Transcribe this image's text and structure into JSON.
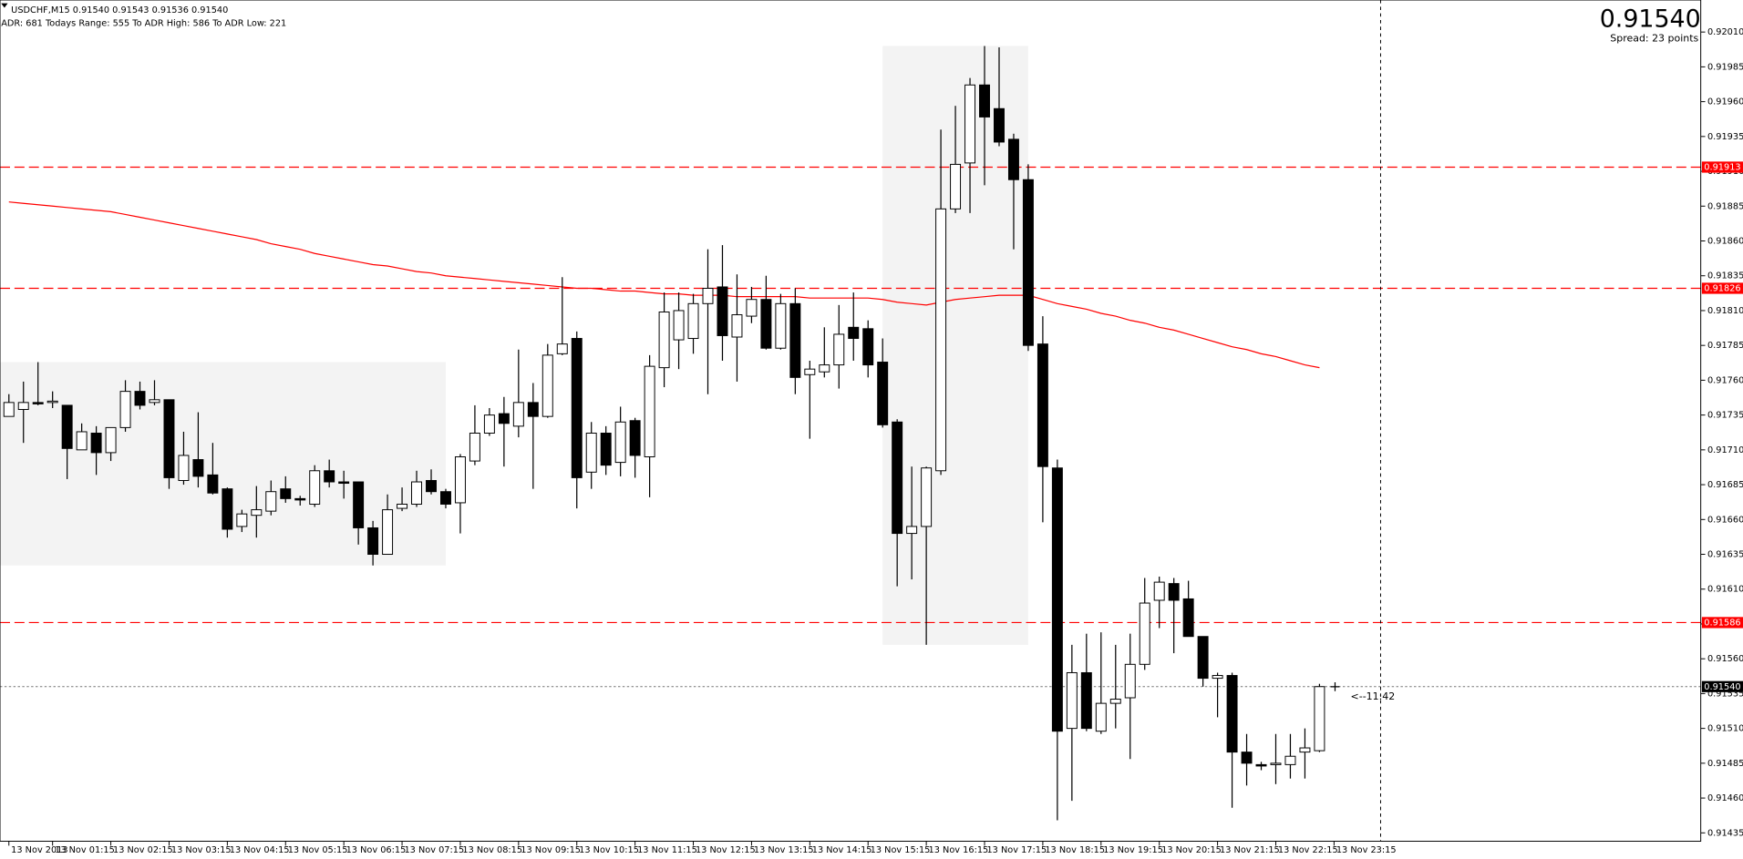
{
  "chart_data": {
    "type": "candlestick",
    "header": "USDCHF,M15  0.91540 0.91543 0.91536 0.91540",
    "info": "ADR: 681  Todays Range: 555  To ADR High: 586  To ADR Low: 221",
    "price": "0.91540",
    "spread": "Spread: 23 points",
    "countdown": "<--11:42",
    "categories": [
      "13 Nov 2013",
      null,
      null,
      "13 Nov 01:15",
      null,
      null,
      null,
      "13 Nov 02:15",
      null,
      null,
      null,
      "13 Nov 03:15",
      null,
      null,
      null,
      "13 Nov 04:15",
      null,
      null,
      null,
      "13 Nov 05:15",
      null,
      null,
      null,
      "13 Nov 06:15",
      null,
      null,
      null,
      "13 Nov 07:15",
      null,
      null,
      null,
      "13 Nov 08:15",
      null,
      null,
      null,
      "13 Nov 09:15",
      null,
      null,
      null,
      "13 Nov 10:15",
      null,
      null,
      null,
      "13 Nov 11:15",
      null,
      null,
      null,
      "13 Nov 12:15",
      null,
      null,
      null,
      "13 Nov 13:15",
      null,
      null,
      null,
      "13 Nov 14:15",
      null,
      null,
      null,
      "13 Nov 15:15",
      null,
      null,
      null,
      "13 Nov 16:15",
      null,
      null,
      null,
      "13 Nov 17:15",
      null,
      null,
      null,
      "13 Nov 18:15",
      null,
      null,
      null,
      "13 Nov 19:15",
      null,
      null,
      null,
      "13 Nov 20:15",
      null,
      null,
      null,
      "13 Nov 21:15",
      null,
      null,
      null,
      "13 Nov 22:15",
      null,
      null,
      null,
      "13 Nov 23:15"
    ],
    "open": [
      0.91734,
      0.91739,
      0.91744,
      0.91744,
      0.91742,
      0.9171,
      0.91722,
      0.91708,
      0.91726,
      0.91752,
      0.91744,
      0.91746,
      0.91688,
      0.91703,
      0.91692,
      0.91682,
      0.91655,
      0.91663,
      0.91666,
      0.91682,
      0.91675,
      0.91671,
      0.91695,
      0.91687,
      0.91687,
      0.91654,
      0.91635,
      0.91668,
      0.91671,
      0.91688,
      0.9168,
      0.91672,
      0.91702,
      0.91722,
      0.91736,
      0.91727,
      0.91744,
      0.91734,
      0.91779,
      0.9179,
      0.91694,
      0.91722,
      0.91701,
      0.91731,
      0.91705,
      0.91769,
      0.91789,
      0.9179,
      0.91815,
      0.91827,
      0.91791,
      0.91806,
      0.91818,
      0.91783,
      0.91815,
      0.91764,
      0.91766,
      0.91771,
      0.91798,
      0.91797,
      0.91773,
      0.9173,
      0.9165,
      0.91655,
      0.91695,
      0.91883,
      0.91916,
      0.91972,
      0.91955,
      0.91933,
      0.91904,
      0.91786,
      0.91697,
      0.9151,
      0.9155,
      0.91508,
      0.91528,
      0.91532,
      0.91556,
      0.91602,
      0.91614,
      0.91603,
      0.91576,
      0.91546,
      0.91548,
      0.91493,
      0.91484,
      0.91484,
      0.91484,
      0.91493,
      0.91494,
      null
    ],
    "high": [
      0.9175,
      0.91759,
      0.91773,
      0.91752,
      0.91742,
      0.91729,
      0.91727,
      0.91726,
      0.9176,
      0.91759,
      0.9176,
      0.91746,
      0.91723,
      0.91737,
      0.91715,
      0.91683,
      0.91667,
      0.91684,
      0.91688,
      0.91691,
      0.91677,
      0.91699,
      0.91703,
      0.91695,
      0.91687,
      0.91659,
      0.91678,
      0.91683,
      0.91695,
      0.91696,
      0.91682,
      0.91707,
      0.91742,
      0.9174,
      0.91748,
      0.91782,
      0.91758,
      0.91786,
      0.91834,
      0.91795,
      0.9173,
      0.91727,
      0.91741,
      0.91733,
      0.91778,
      0.91823,
      0.91823,
      0.91822,
      0.91854,
      0.91857,
      0.91836,
      0.91827,
      0.91835,
      0.91822,
      0.91826,
      0.91774,
      0.91798,
      0.91814,
      0.91823,
      0.91803,
      0.9179,
      0.91732,
      0.91698,
      0.91698,
      0.9194,
      0.91957,
      0.91977,
      0.92,
      0.91999,
      0.91937,
      0.91915,
      0.91806,
      0.91703,
      0.9157,
      0.91578,
      0.91579,
      0.9157,
      0.91578,
      0.91618,
      0.91619,
      0.91618,
      0.91616,
      0.91576,
      0.9155,
      0.9155,
      0.91506,
      0.91486,
      0.91506,
      0.91506,
      0.9151,
      0.91542,
      null
    ],
    "low": [
      0.91734,
      0.91715,
      0.91742,
      0.9174,
      0.91689,
      0.9171,
      0.91692,
      0.91702,
      0.91723,
      0.91739,
      0.91742,
      0.91682,
      0.91685,
      0.91683,
      0.91678,
      0.91647,
      0.91651,
      0.91647,
      0.91663,
      0.91672,
      0.9167,
      0.91669,
      0.91683,
      0.91675,
      0.91642,
      0.91627,
      0.91635,
      0.91666,
      0.91669,
      0.91678,
      0.91668,
      0.9165,
      0.91699,
      0.9172,
      0.91698,
      0.91719,
      0.91682,
      0.91733,
      0.91778,
      0.91668,
      0.91682,
      0.91692,
      0.91691,
      0.9169,
      0.91676,
      0.91755,
      0.91768,
      0.91779,
      0.9175,
      0.91774,
      0.91759,
      0.91801,
      0.91782,
      0.91782,
      0.9175,
      0.91718,
      0.91762,
      0.91754,
      0.91774,
      0.91762,
      0.91726,
      0.91612,
      0.91617,
      0.9157,
      0.91692,
      0.9188,
      0.9188,
      0.919,
      0.91928,
      0.91854,
      0.91781,
      0.91658,
      0.91444,
      0.91458,
      0.91508,
      0.91506,
      0.9151,
      0.91488,
      0.91552,
      0.91582,
      0.91564,
      0.91576,
      0.9154,
      0.91518,
      0.91453,
      0.91469,
      0.9148,
      0.9147,
      0.91474,
      0.91474,
      0.91493,
      null
    ],
    "close": [
      0.91744,
      0.91744,
      0.91743,
      0.91745,
      0.91711,
      0.91723,
      0.91708,
      0.91726,
      0.91752,
      0.91742,
      0.91746,
      0.9169,
      0.91706,
      0.91691,
      0.91679,
      0.91653,
      0.91664,
      0.91667,
      0.9168,
      0.91675,
      0.91674,
      0.91695,
      0.91687,
      0.91686,
      0.91654,
      0.91635,
      0.91667,
      0.91671,
      0.91687,
      0.9168,
      0.91671,
      0.91705,
      0.91722,
      0.91735,
      0.91729,
      0.91744,
      0.91734,
      0.91778,
      0.91786,
      0.9169,
      0.91722,
      0.91699,
      0.9173,
      0.91706,
      0.9177,
      0.91809,
      0.9181,
      0.91815,
      0.91826,
      0.91792,
      0.91807,
      0.91818,
      0.91783,
      0.91815,
      0.91762,
      0.91768,
      0.91771,
      0.91793,
      0.9179,
      0.91771,
      0.91728,
      0.9165,
      0.91655,
      0.91697,
      0.91883,
      0.91915,
      0.91972,
      0.91949,
      0.91931,
      0.91904,
      0.91785,
      0.91698,
      0.91508,
      0.9155,
      0.9151,
      0.91528,
      0.91531,
      0.91556,
      0.916,
      0.91615,
      0.91602,
      0.91576,
      0.91546,
      0.91548,
      0.91493,
      0.91485,
      0.91483,
      0.91485,
      0.9149,
      0.91496,
      0.9154,
      null
    ],
    "up_color": "#ffffff",
    "down_color": "#000000",
    "ma": {
      "color": "#ff0000",
      "values": [
        0.91888,
        0.91887,
        0.91886,
        0.91885,
        0.91884,
        0.91883,
        0.91882,
        0.91881,
        0.91879,
        0.91877,
        0.91875,
        0.91873,
        0.91871,
        0.91869,
        0.91867,
        0.91865,
        0.91863,
        0.91861,
        0.91858,
        0.91856,
        0.91854,
        0.91851,
        0.91849,
        0.91847,
        0.91845,
        0.91843,
        0.91842,
        0.9184,
        0.91838,
        0.91837,
        0.91835,
        0.91834,
        0.91833,
        0.91832,
        0.91831,
        0.9183,
        0.91829,
        0.91828,
        0.91827,
        0.91826,
        0.91826,
        0.91825,
        0.91824,
        0.91824,
        0.91823,
        0.91822,
        0.91822,
        0.91821,
        0.91821,
        0.91821,
        0.9182,
        0.9182,
        0.9182,
        0.9182,
        0.9182,
        0.91819,
        0.91819,
        0.91819,
        0.91819,
        0.91819,
        0.91818,
        0.91816,
        0.91815,
        0.91814,
        0.91816,
        0.91818,
        0.91819,
        0.9182,
        0.91821,
        0.91821,
        0.91821,
        0.91818,
        0.91815,
        0.91813,
        0.91811,
        0.91808,
        0.91806,
        0.91803,
        0.91801,
        0.91798,
        0.91796,
        0.91793,
        0.9179,
        0.91787,
        0.91784,
        0.91782,
        0.91779,
        0.91777,
        0.91774,
        0.91771,
        0.91769,
        null
      ]
    },
    "levels": [
      0.91913,
      0.91826,
      0.91586
    ],
    "level_color": "#ff0000",
    "bid": 0.9154,
    "bid_label": "0.91540",
    "zones": [
      {
        "first": 0,
        "last": 30,
        "high": 0.91773,
        "low": 0.91627
      },
      {
        "first": 61,
        "last": 70,
        "high": 0.92,
        "low": 0.9157
      }
    ],
    "zone_color": "#f3f3f3",
    "ylim": [
      0.91429,
      0.92033
    ],
    "yticks": [
      {
        "value": 0.9201,
        "label": "0.92010"
      },
      0.91985,
      {
        "value": 0.9196,
        "label": "0.91960"
      },
      0.91935,
      {
        "value": 0.9191,
        "label": "0.91910"
      },
      0.91885,
      {
        "value": 0.9186,
        "label": "0.91860"
      },
      0.91835,
      {
        "value": 0.9181,
        "label": "0.91810"
      },
      0.91785,
      {
        "value": 0.9176,
        "label": "0.91760"
      },
      0.91735,
      {
        "value": 0.9171,
        "label": "0.91710"
      },
      0.91685,
      {
        "value": 0.9166,
        "label": "0.91660"
      },
      0.91635,
      {
        "value": 0.9161,
        "label": "0.91610"
      },
      0.91585,
      {
        "value": 0.9156,
        "label": "0.91560"
      },
      0.91535,
      {
        "value": 0.9151,
        "label": "0.91510"
      },
      0.91485,
      {
        "value": 0.9146,
        "label": "0.91460"
      },
      0.91435
    ]
  }
}
